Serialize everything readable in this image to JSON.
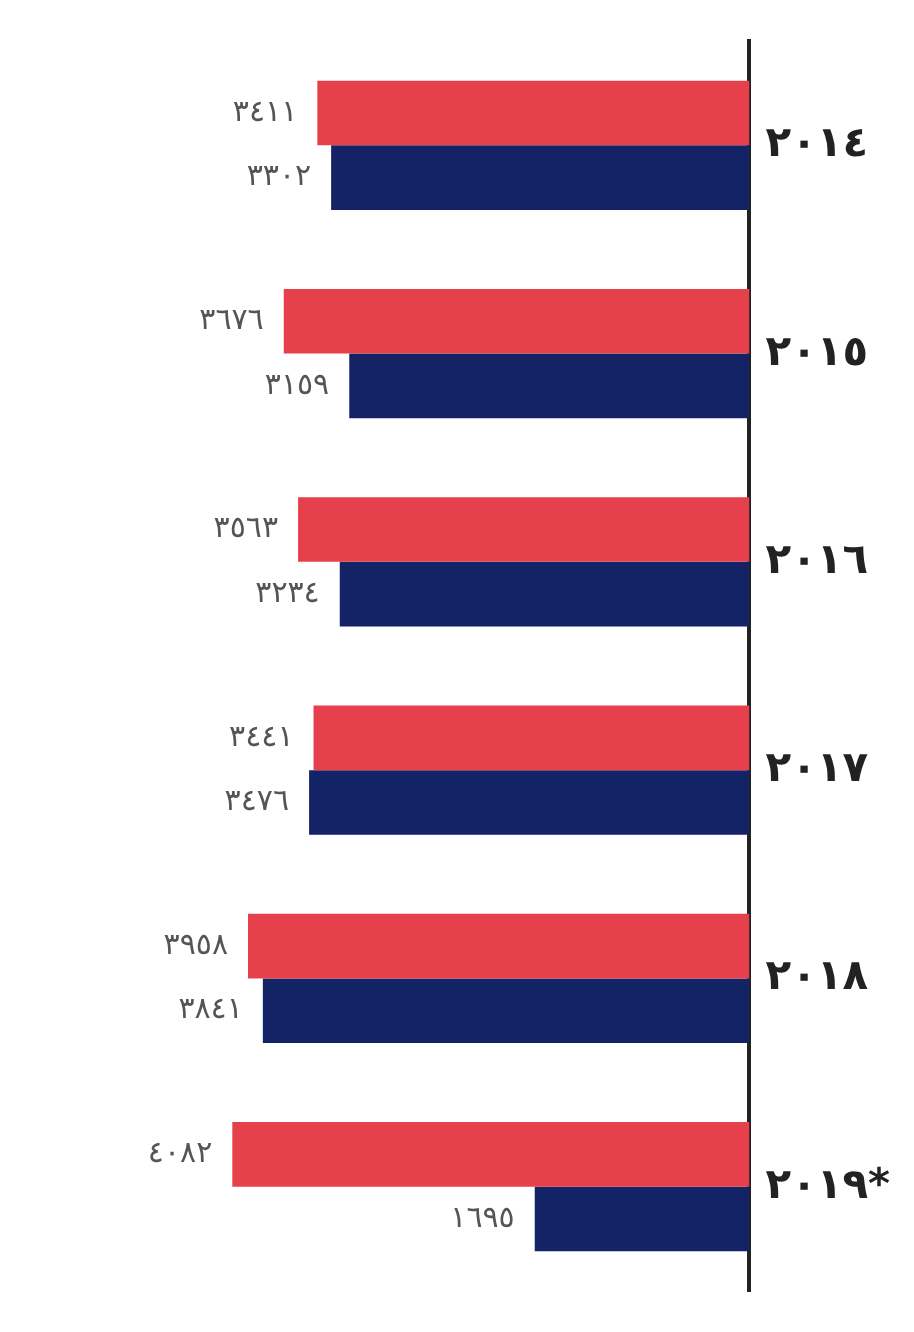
{
  "chart_data": {
    "type": "bar",
    "orientation": "horizontal",
    "categories": [
      "٢٠١٤",
      "٢٠١٥",
      "٢٠١٦",
      "٢٠١٧",
      "٢٠١٨",
      "٢٠١٩*"
    ],
    "series": [
      {
        "color": "#e6404d",
        "values": [
          3411,
          3676,
          3563,
          3441,
          3958,
          4082
        ],
        "value_labels": [
          "٣٤١١",
          "٣٦٧٦",
          "٣٥٦٣",
          "٣٤٤١",
          "٣٩٥٨",
          "٤٠٨٢"
        ]
      },
      {
        "color": "#142266",
        "values": [
          3302,
          3159,
          3234,
          3476,
          3841,
          1695
        ],
        "value_labels": [
          "٣٣٠٢",
          "٣١٥٩",
          "٣٢٣٤",
          "٣٤٧٦",
          "٣٨٤١",
          "١٦٩٥"
        ]
      }
    ],
    "tick_labels": "y",
    "legend": false
  }
}
